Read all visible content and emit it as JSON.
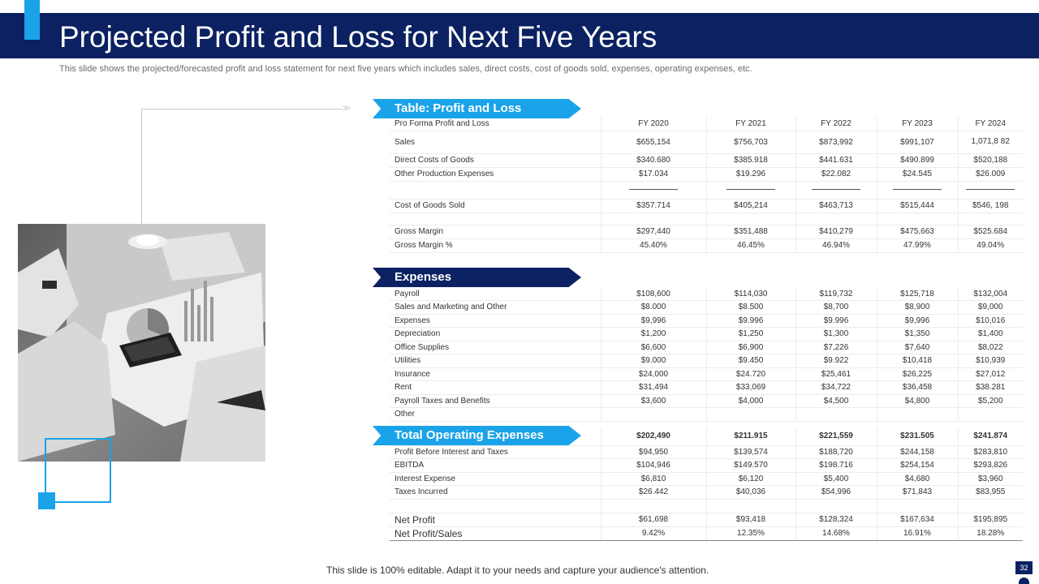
{
  "slide": {
    "title": "Projected Profit and Loss for Next Five Years",
    "subtitle": "This slide shows the projected/forecasted profit and loss statement for next five years which includes sales, direct costs, cost of goods sold, expenses, operating expenses, etc.",
    "footer": "This slide is 100% editable. Adapt it to your needs and capture your audience's attention.",
    "page_number": "32"
  },
  "colors": {
    "navy": "#0b2162",
    "accent": "#1aa3e8"
  },
  "photo": {
    "icon": "office-desk-photo"
  },
  "sections": {
    "profit_loss": "Table: Profit and Loss",
    "expenses": "Expenses",
    "total_operating": "Total Operating Expenses"
  },
  "table1": {
    "header": [
      "Pro Forma Profit and Loss",
      "FY 2020",
      "FY 2021",
      "FY 2022",
      "FY 2023",
      "FY 2024"
    ],
    "rows": [
      {
        "label": "Sales",
        "values": [
          "$655,154",
          "$756,703",
          "$873,992",
          "$991,107",
          "1,071,8 82"
        ]
      },
      {
        "label": "Direct Costs of Goods",
        "values": [
          "$340.680",
          "$385.918",
          "$441.631",
          "$490.899",
          "$520,188"
        ]
      },
      {
        "label": "Other Production Expenses",
        "values": [
          "$17.034",
          "$19.296",
          "$22.082",
          "$24.545",
          "$26.009"
        ]
      },
      {
        "label": "Cost of Goods Sold",
        "values": [
          "$357.714",
          "$405,214",
          "$463,713",
          "$515,444",
          "$546, 198"
        ]
      },
      {
        "label": "Gross Margin",
        "values": [
          "$297,440",
          "$351,488",
          "$410,279",
          "$475,663",
          "$525.684"
        ]
      },
      {
        "label": "Gross Margin %",
        "values": [
          "45.40%",
          "46.45%",
          "46.94%",
          "47.99%",
          "49.04%"
        ]
      }
    ]
  },
  "table2": {
    "rows": [
      {
        "label": "Payroll",
        "values": [
          "$108,600",
          "$114,030",
          "$119,732",
          "$125,718",
          "$132,004"
        ]
      },
      {
        "label": "Sales and Marketing and Other",
        "values": [
          "$8.000",
          "$8.500",
          "$8,700",
          "$8,900",
          "$9,000"
        ]
      },
      {
        "label": "Expenses",
        "values": [
          "$9,996",
          "$9.996",
          "$9.996",
          "$9,996",
          "$10,016"
        ]
      },
      {
        "label": "Depreciation",
        "values": [
          "$1,200",
          "$1,250",
          "$1,300",
          "$1,350",
          "$1,400"
        ]
      },
      {
        "label": "Office Supplies",
        "values": [
          "$6,600",
          "$6,900",
          "$7,226",
          "$7,640",
          "$8,022"
        ]
      },
      {
        "label": "Utilities",
        "values": [
          "$9.000",
          "$9.450",
          "$9.922",
          "$10,418",
          "$10,939"
        ]
      },
      {
        "label": "Insurance",
        "values": [
          "$24,000",
          "$24.720",
          "$25,461",
          "$26,225",
          "$27,012"
        ]
      },
      {
        "label": "Rent",
        "values": [
          "$31,494",
          "$33,069",
          "$34,722",
          "$36,458",
          "$38.281"
        ]
      },
      {
        "label": "Payroll Taxes and Benefits",
        "values": [
          "$3,600",
          "$4,000",
          "$4,500",
          "$4,800",
          "$5,200"
        ]
      },
      {
        "label": "Other",
        "values": [
          "",
          "",
          "",
          "",
          ""
        ]
      }
    ]
  },
  "table3": {
    "total_values": [
      "$202,490",
      "$211.915",
      "$221,559",
      "$231.505",
      "$241.874"
    ],
    "rows": [
      {
        "label": "Profit Before Interest and Taxes",
        "values": [
          "$94,950",
          "$139,574",
          "$188,720",
          "$244,158",
          "$283,810"
        ]
      },
      {
        "label": "EBITDA",
        "values": [
          "$104,946",
          "$149.570",
          "$198.716",
          "$254,154",
          "$293,826"
        ]
      },
      {
        "label": "Interest Expense",
        "values": [
          "$6,810",
          "$6,120",
          "$5,400",
          "$4,680",
          "$3,960"
        ]
      },
      {
        "label": "Taxes Incurred",
        "values": [
          "$26.442",
          "$40,036",
          "$54,996",
          "$71,843",
          "$83,955"
        ]
      },
      {
        "label": "Net Profit",
        "values": [
          "$61,698",
          "$93,418",
          "$128,324",
          "$167,634",
          "$195,895"
        ]
      },
      {
        "label": "Net Profit/Sales",
        "values": [
          "9.42%",
          "12.35%",
          "14.68%",
          "16.91%",
          "18.28%"
        ]
      }
    ]
  }
}
